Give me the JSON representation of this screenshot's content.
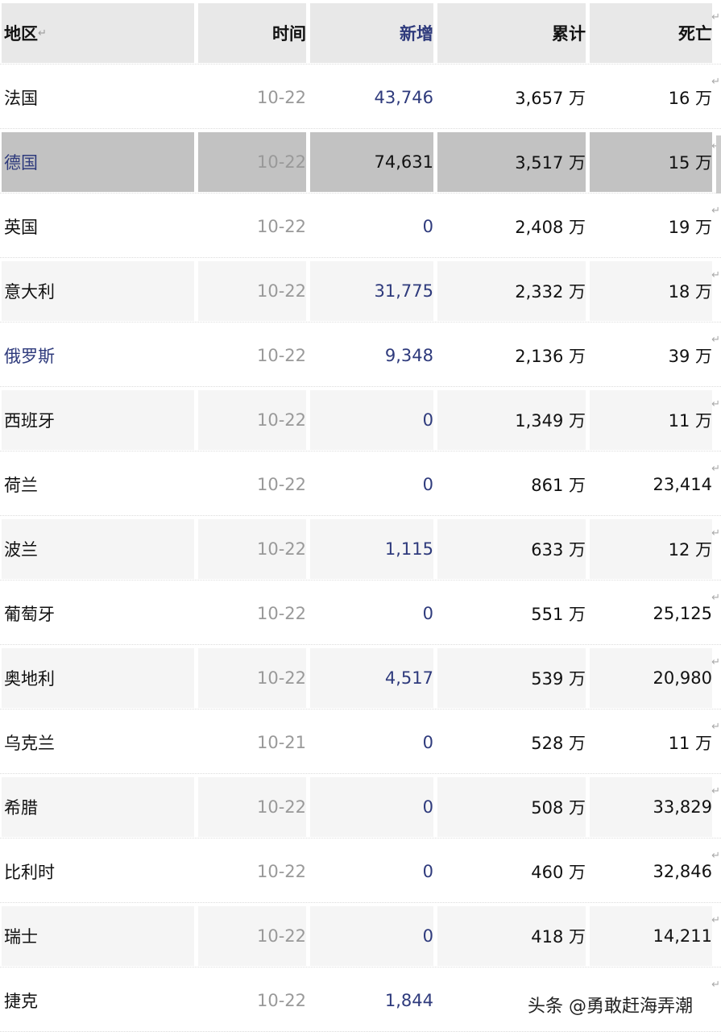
{
  "header": {
    "region": "地区",
    "time": "时间",
    "new": "新增",
    "total": "累计",
    "deaths": "死亡"
  },
  "colors": {
    "link": "#2e3a7c",
    "header_bg": "#e8e8e8",
    "alt_row_bg": "#f5f5f5",
    "selected_row_bg": "#c2c2c2"
  },
  "rows": [
    {
      "region": "法国",
      "time": "10-22",
      "new": "43,746",
      "total": "3,657 万",
      "deaths": "16 万"
    },
    {
      "region": "德国",
      "time": "10-22",
      "new": "74,631",
      "total": "3,517 万",
      "deaths": "15 万",
      "selected": true,
      "link": true
    },
    {
      "region": "英国",
      "time": "10-22",
      "new": "0",
      "total": "2,408 万",
      "deaths": "19 万"
    },
    {
      "region": "意大利",
      "time": "10-22",
      "new": "31,775",
      "total": "2,332 万",
      "deaths": "18 万"
    },
    {
      "region": "俄罗斯",
      "time": "10-22",
      "new": "9,348",
      "total": "2,136 万",
      "deaths": "39 万",
      "link": true
    },
    {
      "region": "西班牙",
      "time": "10-22",
      "new": "0",
      "total": "1,349 万",
      "deaths": "11 万"
    },
    {
      "region": "荷兰",
      "time": "10-22",
      "new": "0",
      "total": "861 万",
      "deaths": "23,414"
    },
    {
      "region": "波兰",
      "time": "10-22",
      "new": "1,115",
      "total": "633 万",
      "deaths": "12 万"
    },
    {
      "region": "葡萄牙",
      "time": "10-22",
      "new": "0",
      "total": "551 万",
      "deaths": "25,125"
    },
    {
      "region": "奥地利",
      "time": "10-22",
      "new": "4,517",
      "total": "539 万",
      "deaths": "20,980"
    },
    {
      "region": "乌克兰",
      "time": "10-21",
      "new": "0",
      "total": "528 万",
      "deaths": "11 万"
    },
    {
      "region": "希腊",
      "time": "10-22",
      "new": "0",
      "total": "508 万",
      "deaths": "33,829"
    },
    {
      "region": "比利时",
      "time": "10-22",
      "new": "0",
      "total": "460 万",
      "deaths": "32,846"
    },
    {
      "region": "瑞士",
      "time": "10-22",
      "new": "0",
      "total": "418 万",
      "deaths": "14,211"
    },
    {
      "region": "捷克",
      "time": "10-22",
      "new": "1,844"
    }
  ],
  "watermark": "头条 @勇敢赶海弄潮"
}
